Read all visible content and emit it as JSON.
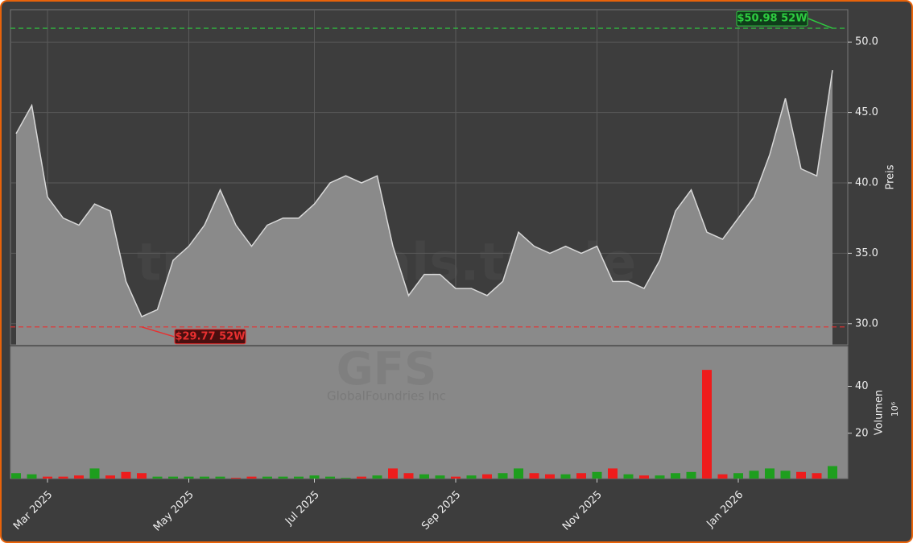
{
  "chart_data": [
    {
      "type": "area",
      "y_label": "Preis",
      "watermark": "trexsignals.trade",
      "categories": [
        null,
        null,
        "Mar 2025",
        null,
        null,
        null,
        null,
        null,
        null,
        null,
        null,
        "May 2025",
        null,
        null,
        null,
        null,
        null,
        null,
        null,
        "Jul 2025",
        null,
        null,
        null,
        null,
        null,
        null,
        null,
        null,
        "Sep 2025",
        null,
        null,
        null,
        null,
        null,
        null,
        null,
        null,
        "Nov 2025",
        null,
        null,
        null,
        null,
        null,
        null,
        null,
        null,
        "Jan 2026",
        null,
        null,
        null,
        null,
        null,
        null
      ],
      "values": [
        43.5,
        45.5,
        39,
        37.5,
        37,
        38.5,
        38,
        33,
        30.5,
        31,
        34.5,
        35.5,
        37,
        39.5,
        37,
        35.5,
        37,
        37.5,
        37.5,
        38.5,
        40,
        40.5,
        40,
        40.5,
        35.5,
        32,
        33.5,
        33.5,
        32.5,
        32.5,
        32,
        33,
        36.5,
        35.5,
        35,
        35.5,
        35,
        35.5,
        33,
        33,
        32.5,
        34.5,
        38,
        39.5,
        36.5,
        36,
        37.5,
        39,
        42,
        46,
        41,
        40.5,
        48
      ],
      "color": "#8a8a8a",
      "line_color": "#d8d8d8",
      "ylim": [
        28.5,
        52.3
      ],
      "yticks": [
        {
          "value": 30,
          "label": "30.0"
        },
        {
          "value": 35,
          "label": "35.0"
        },
        {
          "value": 40,
          "label": "40.0"
        },
        {
          "value": 45,
          "label": "45.0"
        },
        {
          "value": 50,
          "label": "50.0"
        }
      ],
      "grid": true,
      "annotations": [
        {
          "value": 50.98,
          "label": "$50.98 52W",
          "color": "#2ecc40"
        },
        {
          "value": 29.77,
          "label": "$29.77 52W",
          "color": "#e83030"
        }
      ]
    },
    {
      "type": "bar",
      "y_label": "Volumen",
      "y_multiplier": "10⁶",
      "watermark": "GFS",
      "watermark_sub": "GlobalFoundries Inc",
      "values": [
        3,
        2.5,
        1.5,
        1.5,
        2,
        5,
        2,
        3.5,
        3,
        1.5,
        1.5,
        1.5,
        1.5,
        1.5,
        1,
        1.5,
        1.5,
        1.5,
        1.5,
        2,
        1.5,
        1,
        1.5,
        2,
        5,
        3,
        2.5,
        2,
        1.5,
        2,
        2.5,
        3,
        5,
        3,
        2.5,
        2.5,
        3,
        3.5,
        5,
        2.5,
        2,
        2,
        3,
        3.5,
        47,
        2.5,
        3,
        4,
        5,
        4,
        3.5,
        3,
        6
      ],
      "up_color": "#1e9e1e",
      "down_color": "#ee1c1c",
      "ylim": [
        0,
        57
      ],
      "yticks": [
        20,
        40
      ]
    }
  ]
}
